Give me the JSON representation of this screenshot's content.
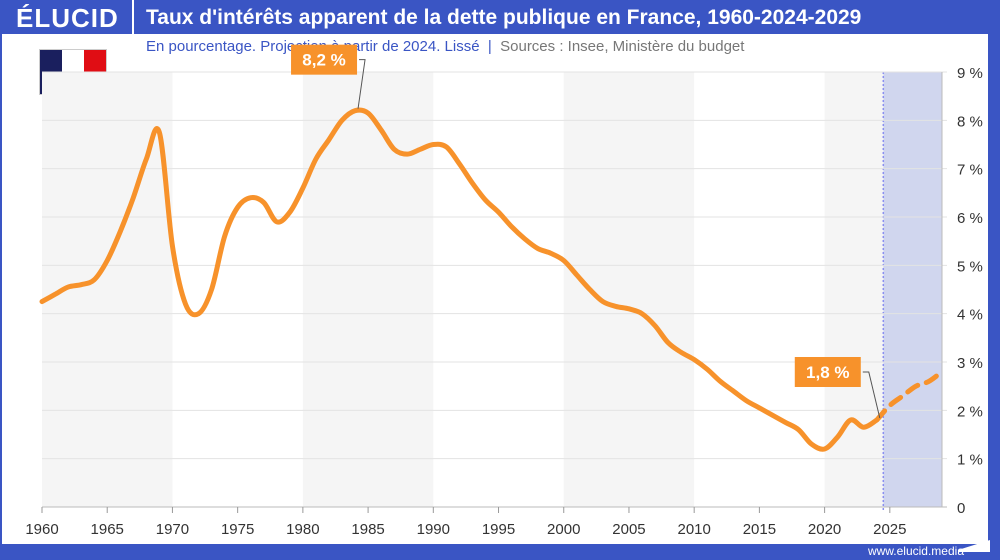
{
  "header": {
    "logo": "ÉLUCID",
    "title": "Taux d'intérêts apparent de la dette publique en France, 1960-2024-2029"
  },
  "subtitle": {
    "text": "En pourcentage. Projection à partir de 2024. Lissé",
    "sources": "Sources : Insee, Ministère du budget"
  },
  "flag": {
    "colors": [
      "#1a1f5e",
      "#ffffff",
      "#e00d14"
    ]
  },
  "footer": {
    "url": "www.elucid.media"
  },
  "chart_data": {
    "type": "line",
    "title": "Taux d'intérêts apparent de la dette publique en France, 1960-2024-2029",
    "xlim": [
      1960,
      2029
    ],
    "ylim": [
      0,
      9
    ],
    "x_ticks": [
      1960,
      1965,
      1970,
      1975,
      1980,
      1985,
      1990,
      1995,
      2000,
      2005,
      2010,
      2015,
      2020,
      2025
    ],
    "y_tick_labels": [
      "0",
      "1 %",
      "2 %",
      "3 %",
      "4 %",
      "5 %",
      "6 %",
      "7 %",
      "8 %",
      "9 %"
    ],
    "grid": true,
    "projection_start": 2024.5,
    "colors": {
      "line": "#f7922b",
      "projection_band": "#d0d6ee",
      "band": "#f5f5f5",
      "label_bg": "#f7922b"
    },
    "annotations": [
      {
        "x": 1984,
        "y": 8.2,
        "text": "8,2 %"
      },
      {
        "x": 2024,
        "y": 1.8,
        "text": "1,8 %"
      }
    ],
    "series": [
      {
        "style": "solid",
        "x": [
          1960,
          1961,
          1962,
          1963,
          1964,
          1965,
          1966,
          1967,
          1968,
          1969,
          1970,
          1971,
          1972,
          1973,
          1974,
          1975,
          1976,
          1977,
          1978,
          1979,
          1980,
          1981,
          1982,
          1983,
          1984,
          1985,
          1986,
          1987,
          1988,
          1989,
          1990,
          1991,
          1992,
          1993,
          1994,
          1995,
          1996,
          1997,
          1998,
          1999,
          2000,
          2001,
          2002,
          2003,
          2004,
          2005,
          2006,
          2007,
          2008,
          2009,
          2010,
          2011,
          2012,
          2013,
          2014,
          2015,
          2016,
          2017,
          2018,
          2019,
          2020,
          2021,
          2022,
          2023,
          2024
        ],
        "values": [
          4.25,
          4.4,
          4.55,
          4.6,
          4.7,
          5.1,
          5.7,
          6.4,
          7.2,
          7.75,
          5.4,
          4.2,
          4.0,
          4.5,
          5.6,
          6.2,
          6.4,
          6.3,
          5.9,
          6.1,
          6.6,
          7.2,
          7.6,
          8.0,
          8.2,
          8.15,
          7.8,
          7.4,
          7.3,
          7.4,
          7.5,
          7.45,
          7.1,
          6.7,
          6.35,
          6.1,
          5.8,
          5.55,
          5.35,
          5.25,
          5.1,
          4.8,
          4.5,
          4.25,
          4.15,
          4.1,
          4.0,
          3.75,
          3.4,
          3.2,
          3.05,
          2.85,
          2.6,
          2.4,
          2.2,
          2.05,
          1.9,
          1.75,
          1.6,
          1.3,
          1.2,
          1.45,
          1.8,
          1.65,
          1.8
        ]
      },
      {
        "style": "dashed",
        "x": [
          2024,
          2025,
          2026,
          2027,
          2028,
          2029
        ],
        "values": [
          1.8,
          2.1,
          2.3,
          2.5,
          2.6,
          2.8
        ]
      }
    ]
  }
}
